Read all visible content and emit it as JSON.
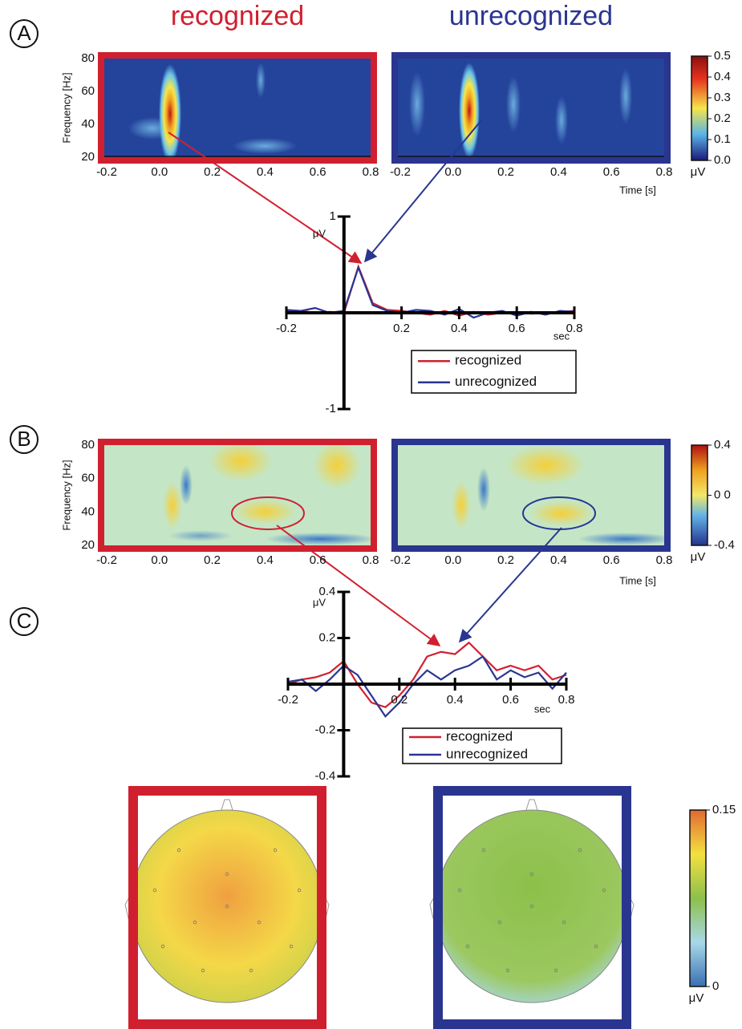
{
  "chart_data": [
    {
      "type": "heatmap",
      "panel": "A",
      "titles": [
        "recognized",
        "unrecognized"
      ],
      "ylabel": "Frequency [Hz]",
      "xlabel": "Time [s]",
      "xlim": [
        -0.2,
        0.8
      ],
      "xticks": [
        -0.2,
        {
          "value": 0,
          "label": "0.0"
        },
        0.2,
        0.4,
        0.6,
        0.8
      ],
      "ylim": [
        20,
        80
      ],
      "yticks": [
        20,
        40,
        60,
        80
      ],
      "frame_colors": [
        "#d0202f",
        "#2a3590"
      ],
      "colorbar": {
        "lim": [
          0,
          0.5
        ],
        "ticks": [
          {
            "value": 0,
            "label": "0.0"
          },
          0.1,
          0.2,
          0.3,
          0.4,
          0.5
        ],
        "unit": "μV"
      }
    },
    {
      "type": "line",
      "ylabel": "μV",
      "xlabel": "sec",
      "xlim": [
        -0.2,
        0.8
      ],
      "xticks": [
        -0.2,
        0.2,
        0.4,
        0.6,
        0.8
      ],
      "ylim": [
        -1,
        1
      ],
      "yticks": [
        -1,
        1
      ],
      "x": [
        -0.2,
        -0.15,
        -0.1,
        -0.05,
        0,
        0.05,
        0.1,
        0.15,
        0.2,
        0.25,
        0.3,
        0.35,
        0.4,
        0.45,
        0.5,
        0.55,
        0.6,
        0.65,
        0.7,
        0.75,
        0.8
      ],
      "series": [
        {
          "name": "recognized",
          "color": "#d0202f",
          "values": [
            0.01,
            0.02,
            0.0,
            0.01,
            0.0,
            0.48,
            0.1,
            0.03,
            0.02,
            0.0,
            -0.02,
            0.02,
            -0.03,
            0.01,
            -0.02,
            0.0,
            0.01,
            -0.01,
            0.0,
            0.01,
            0.02
          ]
        },
        {
          "name": "unrecognized",
          "color": "#2a3590",
          "values": [
            0.03,
            0.02,
            0.05,
            0.0,
            0.02,
            0.47,
            0.08,
            0.02,
            0.0,
            0.03,
            0.02,
            -0.02,
            0.04,
            -0.05,
            0.0,
            0.02,
            -0.03,
            0.01,
            -0.02,
            0.02,
            0.01
          ]
        }
      ]
    },
    {
      "type": "heatmap",
      "panel": "B",
      "xlabel": "Time [s]",
      "ylabel": "Frequency [Hz]",
      "xlim": [
        -0.2,
        0.8
      ],
      "xticks": [
        -0.2,
        {
          "value": 0,
          "label": "0.0"
        },
        0.2,
        0.4,
        0.6,
        0.8
      ],
      "ylim": [
        20,
        80
      ],
      "yticks": [
        20,
        40,
        60,
        80
      ],
      "frame_colors": [
        "#d0202f",
        "#2a3590"
      ],
      "colorbar": {
        "lim": [
          -0.4,
          0.4
        ],
        "ticks": [
          -0.4,
          {
            "value": 0,
            "label": "0 0"
          },
          0.4
        ],
        "unit": "μV"
      }
    },
    {
      "type": "line",
      "ylabel": "μV",
      "xlabel": "sec",
      "xlim": [
        -0.2,
        0.8
      ],
      "xticks": [
        -0.2,
        0.2,
        0.4,
        0.6,
        0.8
      ],
      "ylim": [
        -0.4,
        0.4
      ],
      "yticks": [
        -0.4,
        -0.2,
        0.2,
        0.4
      ],
      "x": [
        -0.2,
        -0.15,
        -0.1,
        -0.05,
        0,
        0.05,
        0.1,
        0.15,
        0.2,
        0.25,
        0.3,
        0.35,
        0.4,
        0.45,
        0.5,
        0.55,
        0.6,
        0.65,
        0.7,
        0.75,
        0.8
      ],
      "series": [
        {
          "name": "recognized",
          "color": "#d0202f",
          "values": [
            0,
            0.02,
            0.03,
            0.05,
            0.1,
            0.0,
            -0.08,
            -0.1,
            -0.05,
            0.02,
            0.12,
            0.14,
            0.13,
            0.18,
            0.12,
            0.06,
            0.08,
            0.06,
            0.08,
            0.02,
            0.04
          ]
        },
        {
          "name": "unrecognized",
          "color": "#2a3590",
          "values": [
            0.01,
            0.02,
            -0.03,
            0.02,
            0.08,
            0.04,
            -0.05,
            -0.14,
            -0.08,
            0.0,
            0.06,
            0.02,
            0.06,
            0.08,
            0.12,
            0.02,
            0.06,
            0.03,
            0.05,
            -0.02,
            0.05
          ]
        }
      ]
    },
    {
      "type": "topomap",
      "panel": "C",
      "frame_colors": [
        "#d0202f",
        "#2a3590"
      ],
      "colorbar": {
        "lim": [
          0,
          0.15
        ],
        "ticks": [
          0,
          0.15
        ],
        "unit": "μV"
      }
    }
  ]
}
